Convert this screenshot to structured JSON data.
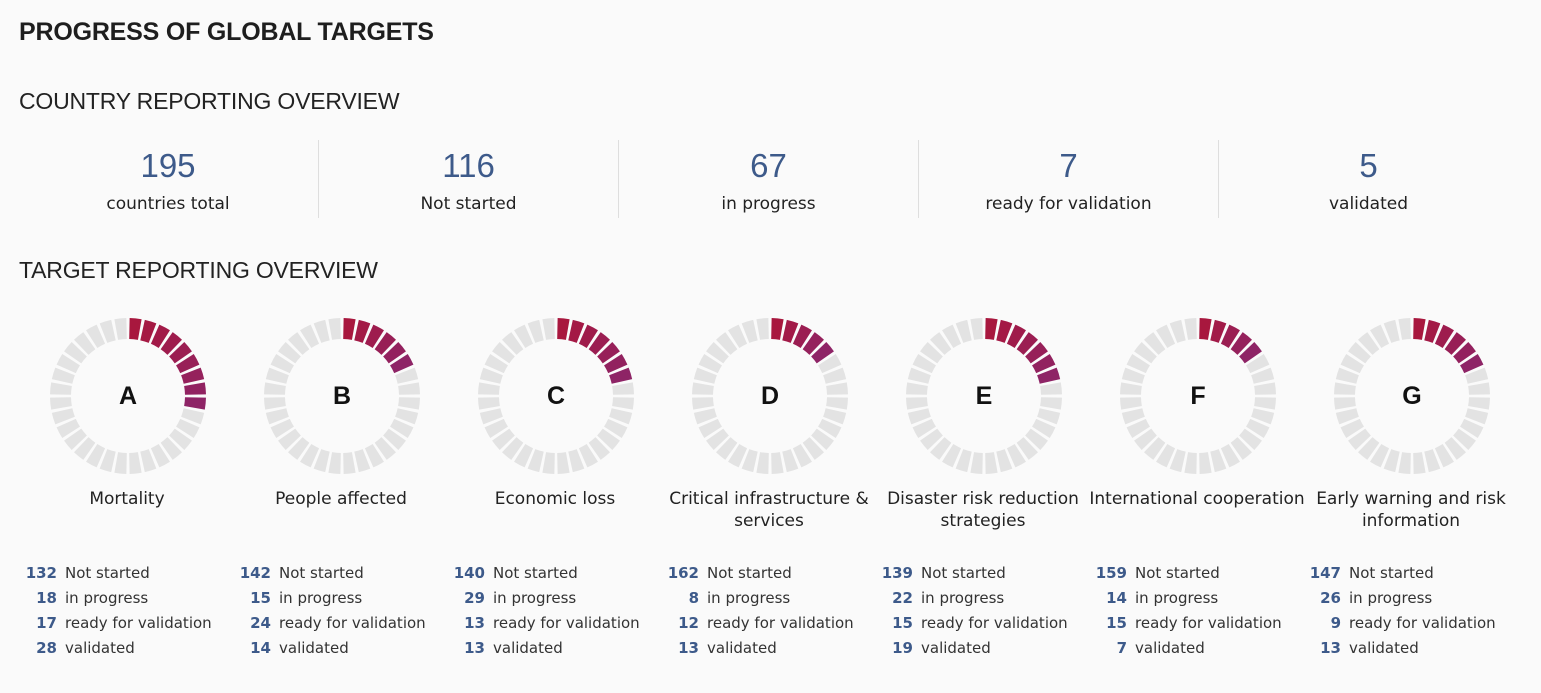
{
  "page": {
    "title": "PROGRESS OF GLOBAL TARGETS",
    "country_heading": "COUNTRY REPORTING OVERVIEW",
    "target_heading": "TARGET REPORTING OVERVIEW"
  },
  "colors": {
    "number": "#3d5a8a",
    "red": "#a8173e",
    "purple": "#8e2466",
    "grey": "#e3e3e3"
  },
  "country_stats": [
    {
      "value": "195",
      "label": "countries total"
    },
    {
      "value": "116",
      "label": "Not started"
    },
    {
      "value": "67",
      "label": "in progress"
    },
    {
      "value": "7",
      "label": "ready for validation"
    },
    {
      "value": "5",
      "label": "validated"
    }
  ],
  "targets": [
    {
      "letter": "A",
      "name": "Mortality",
      "progress_segments": 9,
      "total_segments": 32,
      "rows": [
        {
          "count": "132",
          "label": "Not started"
        },
        {
          "count": "18",
          "label": "in progress"
        },
        {
          "count": "17",
          "label": "ready for validation"
        },
        {
          "count": "28",
          "label": "validated"
        }
      ]
    },
    {
      "letter": "B",
      "name": "People affected",
      "progress_segments": 6,
      "total_segments": 32,
      "rows": [
        {
          "count": "142",
          "label": "Not started"
        },
        {
          "count": "15",
          "label": "in progress"
        },
        {
          "count": "24",
          "label": "ready for validation"
        },
        {
          "count": "14",
          "label": "validated"
        }
      ]
    },
    {
      "letter": "C",
      "name": "Economic loss",
      "progress_segments": 7,
      "total_segments": 32,
      "rows": [
        {
          "count": "140",
          "label": "Not started"
        },
        {
          "count": "29",
          "label": "in progress"
        },
        {
          "count": "13",
          "label": "ready for validation"
        },
        {
          "count": "13",
          "label": "validated"
        }
      ]
    },
    {
      "letter": "D",
      "name": "Critical infrastructure & services",
      "progress_segments": 5,
      "total_segments": 32,
      "rows": [
        {
          "count": "162",
          "label": "Not started"
        },
        {
          "count": "8",
          "label": "in progress"
        },
        {
          "count": "12",
          "label": "ready for validation"
        },
        {
          "count": "13",
          "label": "validated"
        }
      ]
    },
    {
      "letter": "E",
      "name": "Disaster risk reduction strategies",
      "progress_segments": 7,
      "total_segments": 32,
      "rows": [
        {
          "count": "139",
          "label": "Not started"
        },
        {
          "count": "22",
          "label": "in progress"
        },
        {
          "count": "15",
          "label": "ready for validation"
        },
        {
          "count": "19",
          "label": "validated"
        }
      ]
    },
    {
      "letter": "F",
      "name": "International cooperation",
      "progress_segments": 5,
      "total_segments": 32,
      "rows": [
        {
          "count": "159",
          "label": "Not started"
        },
        {
          "count": "14",
          "label": "in progress"
        },
        {
          "count": "15",
          "label": "ready for validation"
        },
        {
          "count": "7",
          "label": "validated"
        }
      ]
    },
    {
      "letter": "G",
      "name": "Early warning and risk information",
      "progress_segments": 6,
      "total_segments": 32,
      "rows": [
        {
          "count": "147",
          "label": "Not started"
        },
        {
          "count": "26",
          "label": "in progress"
        },
        {
          "count": "9",
          "label": "ready for validation"
        },
        {
          "count": "13",
          "label": "validated"
        }
      ]
    }
  ]
}
